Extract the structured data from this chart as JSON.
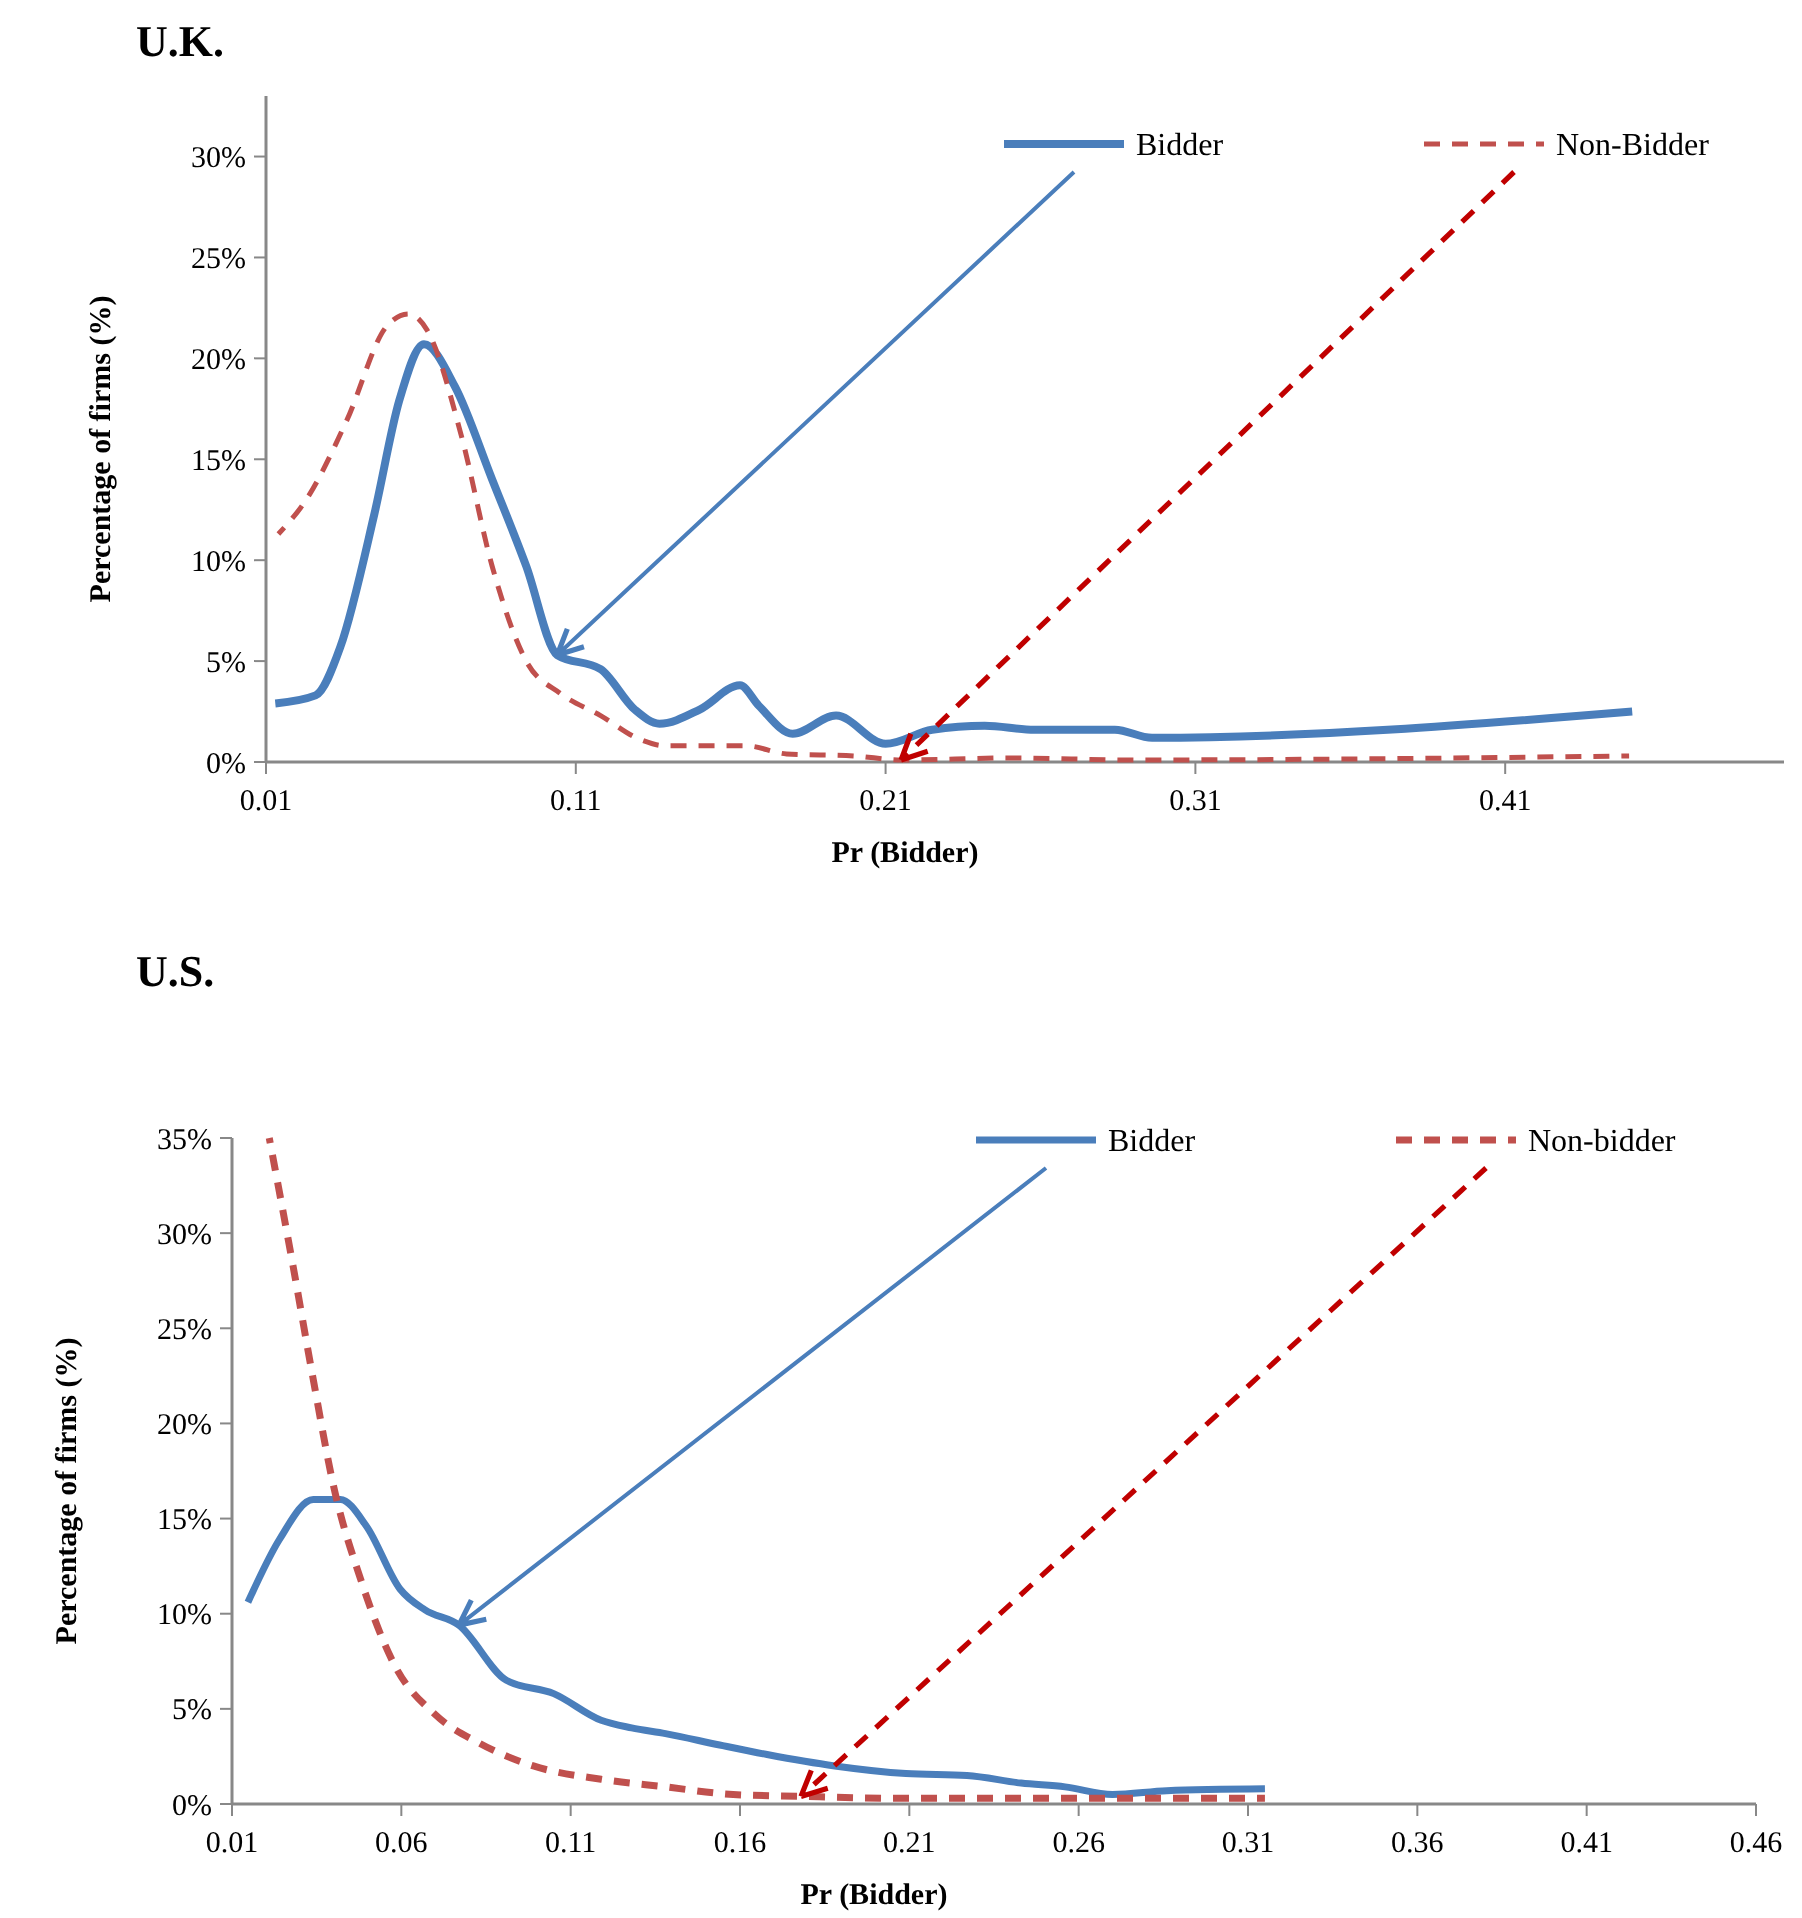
{
  "chart_data": [
    {
      "type": "line",
      "title": "U.K.",
      "xlabel": "Pr (Bidder)",
      "ylabel": "Percentage of firms (%)",
      "xlim": [
        0.01,
        0.5
      ],
      "xticks": [
        0.01,
        0.11,
        0.21,
        0.31,
        0.41
      ],
      "ylim": [
        0,
        33
      ],
      "yticks": [
        {
          "value": 0,
          "label": "0%"
        },
        {
          "value": 5,
          "label": "5%"
        },
        {
          "value": 10,
          "label": "10%"
        },
        {
          "value": 15,
          "label": "15%"
        },
        {
          "value": 20,
          "label": "20%"
        },
        {
          "value": 25,
          "label": "25%"
        },
        {
          "value": 30,
          "label": "30%"
        }
      ],
      "legend": "top right",
      "grid": false,
      "marker": "none",
      "series": [
        {
          "name": "Bidder",
          "color": "#4a7ebb",
          "line_style": "solid",
          "x": [
            0.013,
            0.026,
            0.034,
            0.045,
            0.053,
            0.061,
            0.071,
            0.083,
            0.094,
            0.104,
            0.118,
            0.129,
            0.137,
            0.15,
            0.163,
            0.169,
            0.18,
            0.194,
            0.21,
            0.225,
            0.242,
            0.258,
            0.284,
            0.296,
            0.451
          ],
          "values": [
            2.9,
            3.3,
            5.7,
            12.3,
            17.9,
            20.7,
            18.6,
            14,
            9.7,
            5.3,
            4.6,
            2.6,
            1.9,
            2.6,
            3.8,
            2.8,
            1.4,
            2.3,
            0.9,
            1.6,
            1.8,
            1.6,
            1.6,
            1.2,
            2.5
          ]
        },
        {
          "name": "Non-Bidder",
          "color": "#c0504d",
          "line_style": "dashed",
          "x": [
            0.014,
            0.023,
            0.036,
            0.049,
            0.056,
            0.062,
            0.073,
            0.083,
            0.094,
            0.105,
            0.118,
            0.131,
            0.139,
            0.165,
            0.178,
            0.2,
            0.215,
            0.25,
            0.29,
            0.45
          ],
          "values": [
            11.3,
            13,
            16.9,
            21.6,
            22.2,
            21.4,
            16.2,
            9.7,
            5,
            3.4,
            2.3,
            1.1,
            0.8,
            0.8,
            0.4,
            0.3,
            0.1,
            0.2,
            0.1,
            0.3
          ]
        }
      ]
    },
    {
      "type": "line",
      "title": "U.S.",
      "xlabel": "Pr (Bidder)",
      "ylabel": "Percentage of firms (%)",
      "xlim": [
        0.01,
        0.46
      ],
      "xticks": [
        0.01,
        0.06,
        0.11,
        0.16,
        0.21,
        0.26,
        0.31,
        0.36,
        0.41,
        0.46
      ],
      "ylim": [
        0,
        35
      ],
      "yticks": [
        {
          "value": 0,
          "label": "0%"
        },
        {
          "value": 5,
          "label": "5%"
        },
        {
          "value": 10,
          "label": "10%"
        },
        {
          "value": 15,
          "label": "15%"
        },
        {
          "value": 20,
          "label": "20%"
        },
        {
          "value": 25,
          "label": "25%"
        },
        {
          "value": 30,
          "label": "30%"
        },
        {
          "value": 35,
          "label": "35%"
        }
      ],
      "legend": "top right",
      "grid": false,
      "marker": "none",
      "series": [
        {
          "name": "Bidder",
          "color": "#4a7ebb",
          "line_style": "solid",
          "x": [
            0.0147,
            0.024,
            0.034,
            0.042,
            0.0497,
            0.0596,
            0.067,
            0.077,
            0.091,
            0.105,
            0.119,
            0.128,
            0.138,
            0.154,
            0.168,
            0.188,
            0.209,
            0.227,
            0.243,
            0.256,
            0.27,
            0.286,
            0.315
          ],
          "values": [
            10.6,
            13.9,
            16,
            16,
            14.6,
            11.3,
            10.2,
            9.4,
            6.5,
            5.8,
            4.4,
            4,
            3.7,
            3.1,
            2.6,
            2,
            1.6,
            1.5,
            1.1,
            0.9,
            0.5,
            0.7,
            0.8
          ]
        },
        {
          "name": "Non-bidder",
          "color": "#c0504d",
          "line_style": "dashed",
          "x": [
            0.021,
            0.028,
            0.034,
            0.04,
            0.048,
            0.058,
            0.07,
            0.083,
            0.099,
            0.119,
            0.138,
            0.158,
            0.178,
            0.207,
            0.315
          ],
          "values": [
            35,
            28.3,
            22.3,
            16.7,
            11.8,
            7.3,
            4.7,
            3.2,
            2,
            1.3,
            0.9,
            0.5,
            0.4,
            0.3,
            0.3
          ]
        }
      ]
    }
  ]
}
